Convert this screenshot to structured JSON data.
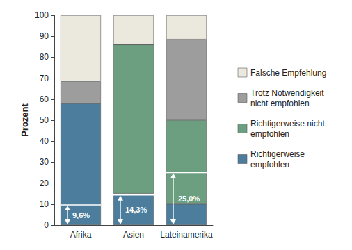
{
  "chart_data": {
    "type": "bar",
    "stacked": true,
    "categories": [
      "Afrika",
      "Asien",
      "Lateinamerika"
    ],
    "series": [
      {
        "name": "Richtigerweise empfohlen",
        "color": "#4c7d9c",
        "values": [
          58,
          15,
          10
        ]
      },
      {
        "name": "Richtigerweise nicht empfohlen",
        "color": "#6c9f80",
        "values": [
          0,
          71,
          40
        ]
      },
      {
        "name": "Trotz Notwendigkeit nicht empfohlen",
        "color": "#9d9d9d",
        "values": [
          10.5,
          0,
          38.5
        ]
      },
      {
        "name": "Falsche Empfehlung",
        "color": "#ebe8de",
        "values": [
          31.5,
          14,
          11.5
        ]
      }
    ],
    "ylabel": "Prozent",
    "ylim": [
      0,
      100
    ],
    "yticks": [
      0,
      10,
      20,
      30,
      40,
      50,
      60,
      70,
      80,
      90,
      100
    ],
    "grid": false,
    "legend": "right",
    "annotations": [
      {
        "category": "Afrika",
        "value": 9.6,
        "label": "9,6%"
      },
      {
        "category": "Asien",
        "value": 14.3,
        "label": "14,3%"
      },
      {
        "category": "Lateinamerika",
        "value": 25.0,
        "label": "25,0%"
      }
    ]
  }
}
